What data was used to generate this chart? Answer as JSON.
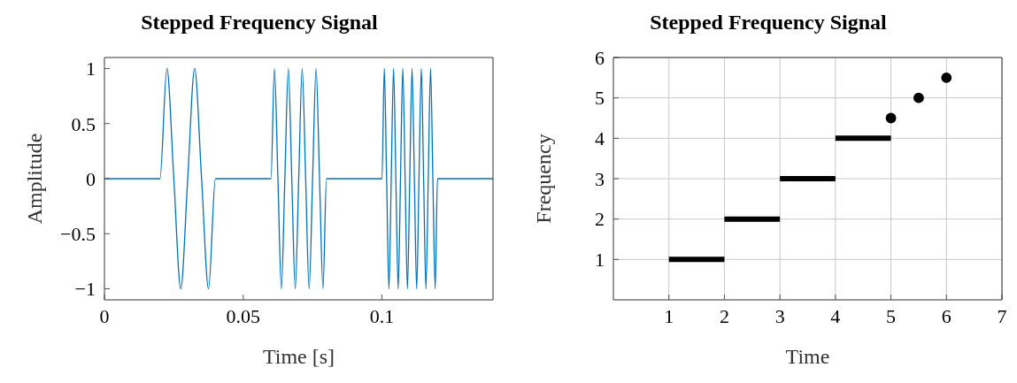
{
  "chart_data": [
    {
      "type": "line",
      "title": "Stepped Frequency Signal",
      "xlabel": "Time [s]",
      "ylabel": "Amplitude",
      "color": "#0072bd",
      "grid": false,
      "xlim": [
        0,
        0.14
      ],
      "xticks": [
        0,
        0.05,
        0.1
      ],
      "ylim": [
        -1.1,
        1.1
      ],
      "yticks": [
        {
          "value": -1,
          "label": "−1"
        },
        {
          "value": -0.5,
          "label": "−0.5"
        },
        0,
        0.5,
        1
      ],
      "x": [
        0,
        0.02,
        0.0225,
        0.025,
        0.0275,
        0.03,
        0.0325,
        0.035,
        0.0375,
        0.04,
        0.06,
        0.06125,
        0.0625,
        0.06375,
        0.065,
        0.06625,
        0.0675,
        0.06875,
        0.07,
        0.07125,
        0.0725,
        0.07375,
        0.075,
        0.07625,
        0.0775,
        0.07875,
        0.08,
        0.1,
        0.10083,
        0.10167,
        0.1025,
        0.10333,
        0.10417,
        0.105,
        0.10583,
        0.10667,
        0.1075,
        0.10833,
        0.10917,
        0.11,
        0.11083,
        0.11167,
        0.1125,
        0.11333,
        0.11417,
        0.115,
        0.11583,
        0.11667,
        0.1175,
        0.11833,
        0.11917,
        0.12,
        0.14
      ],
      "values": [
        0,
        0,
        1,
        0,
        -1,
        0,
        1,
        0,
        -1,
        0,
        0,
        1,
        0,
        -1,
        0,
        1,
        0,
        -1,
        0,
        1,
        0,
        -1,
        0,
        1,
        0,
        -1,
        0,
        0,
        1,
        0,
        -1,
        0,
        1,
        0,
        -1,
        0,
        1,
        0,
        -1,
        0,
        1,
        0,
        -1,
        0,
        1,
        0,
        -1,
        0,
        1,
        0,
        -1,
        0,
        0
      ]
    },
    {
      "type": "line",
      "title": "Stepped Frequency Signal",
      "xlabel": "Time",
      "ylabel": "Frequency",
      "grid": true,
      "xlim": [
        0,
        7
      ],
      "xticks": [
        1,
        2,
        3,
        4,
        5,
        6,
        7
      ],
      "ylim": [
        0,
        6
      ],
      "yticks": [
        1,
        2,
        3,
        4,
        5,
        6
      ],
      "series": [
        {
          "color": "#000000",
          "x": [
            1,
            2
          ],
          "values": [
            1,
            1
          ]
        },
        {
          "color": "#000000",
          "x": [
            2,
            3
          ],
          "values": [
            2,
            2
          ]
        },
        {
          "color": "#000000",
          "x": [
            3,
            4
          ],
          "values": [
            3,
            3
          ]
        },
        {
          "color": "#000000",
          "x": [
            4,
            5
          ],
          "values": [
            4,
            4
          ]
        },
        {
          "type": "scatter",
          "color": "#000000",
          "marker": "circle",
          "x": [
            5,
            5.5,
            6
          ],
          "values": [
            4.5,
            5,
            5.5
          ]
        }
      ]
    }
  ]
}
